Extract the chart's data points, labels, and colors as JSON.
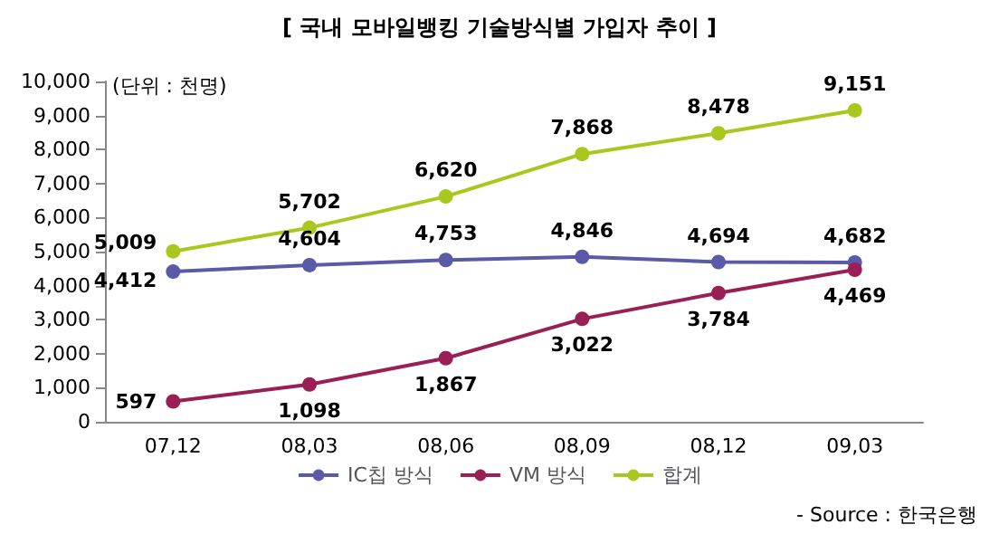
{
  "chart_data": {
    "type": "line",
    "title": "[ 국내 모바일뱅킹 기술방식별 가입자 추이 ]",
    "categories": [
      "07,12",
      "08,03",
      "08,06",
      "08,09",
      "08,12",
      "09,03"
    ],
    "series": [
      {
        "name": "IC칩 방식",
        "color": "#5a5aa8",
        "values": [
          4412,
          4604,
          4753,
          4846,
          4694,
          4682
        ],
        "value_labels": [
          "4,412",
          "4,604",
          "4,753",
          "4,846",
          "4,694",
          "4,682"
        ]
      },
      {
        "name": "VM 방식",
        "color": "#9a1f55",
        "values": [
          597,
          1098,
          1867,
          3022,
          3784,
          4469
        ],
        "value_labels": [
          "597",
          "1,098",
          "1,867",
          "3,022",
          "3,784",
          "4,469"
        ]
      },
      {
        "name": "합계",
        "color": "#a8c81e",
        "values": [
          5009,
          5702,
          6620,
          7868,
          8478,
          9151
        ],
        "value_labels": [
          "5,009",
          "5,702",
          "6,620",
          "7,868",
          "8,478",
          "9,151"
        ]
      }
    ],
    "ylim": [
      0,
      10000
    ],
    "yticks": [
      0,
      {
        "value": 1000,
        "label": "1,000"
      },
      {
        "value": 2000,
        "label": "2,000"
      },
      {
        "value": 3000,
        "label": "3,000"
      },
      {
        "value": 4000,
        "label": "4,000"
      },
      {
        "value": 5000,
        "label": "5,000"
      },
      {
        "value": 6000,
        "label": "6,000"
      },
      {
        "value": 7000,
        "label": "7,000"
      },
      {
        "value": 8000,
        "label": "8,000"
      },
      {
        "value": 9000,
        "label": "9,000"
      },
      {
        "value": 10000,
        "label": "10,000"
      }
    ],
    "grid": false,
    "legend": "bottom",
    "marker": "circle",
    "line_style": "solid",
    "annotations": [
      "(단위 : 천명)",
      "- Source : 한국은행"
    ]
  }
}
